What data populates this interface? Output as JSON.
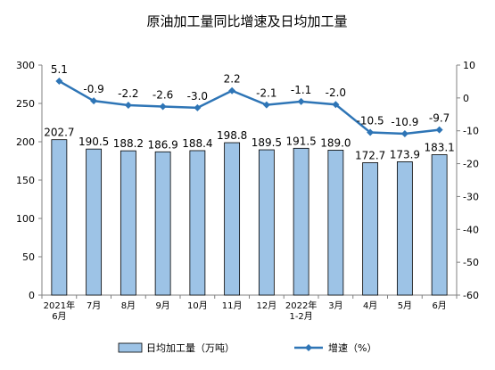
{
  "chart_data": {
    "type": "bar+line",
    "title": "原油加工量同比增速及日均加工量",
    "categories": [
      [
        "2021年",
        "6月"
      ],
      [
        "7月"
      ],
      [
        "8月"
      ],
      [
        "9月"
      ],
      [
        "10月"
      ],
      [
        "11月"
      ],
      [
        "12月"
      ],
      [
        "2022年",
        "1-2月"
      ],
      [
        "3月"
      ],
      [
        "4月"
      ],
      [
        "5月"
      ],
      [
        "6月"
      ]
    ],
    "series": [
      {
        "name": "日均加工量（万吨）",
        "type": "bar",
        "axis": "left",
        "values": [
          202.7,
          190.5,
          188.2,
          186.9,
          188.4,
          198.8,
          189.5,
          191.5,
          189.0,
          172.7,
          173.9,
          183.1
        ],
        "labels": [
          "202.7",
          "190.5",
          "188.2",
          "186.9",
          "188.4",
          "198.8",
          "189.5",
          "191.5",
          "189.0",
          "172.7",
          "173.9",
          "183.1"
        ]
      },
      {
        "name": "增速（%）",
        "type": "line",
        "axis": "right",
        "values": [
          5.1,
          -0.9,
          -2.2,
          -2.6,
          -3.0,
          2.2,
          -2.1,
          -1.1,
          -2.0,
          -10.5,
          -10.9,
          -9.7
        ],
        "labels": [
          "5.1",
          "-0.9",
          "-2.2",
          "-2.6",
          "-3.0",
          "2.2",
          "-2.1",
          "-1.1",
          "-2.0",
          "-10.5",
          "-10.9",
          "-9.7"
        ]
      }
    ],
    "y_left": {
      "range": [
        0,
        300
      ],
      "ticks": [
        "0",
        "50",
        "100",
        "150",
        "200",
        "250",
        "300"
      ]
    },
    "y_right": {
      "range": [
        -60,
        10
      ],
      "ticks": [
        "-60",
        "-50",
        "-40",
        "-30",
        "-20",
        "-10",
        "0",
        "10"
      ]
    },
    "grid": false,
    "legend_position": "bottom",
    "colors": {
      "bar_fill": "#9dc3e6",
      "bar_stroke": "#000000",
      "line": "#2e75b6",
      "axis": "#808080"
    }
  }
}
